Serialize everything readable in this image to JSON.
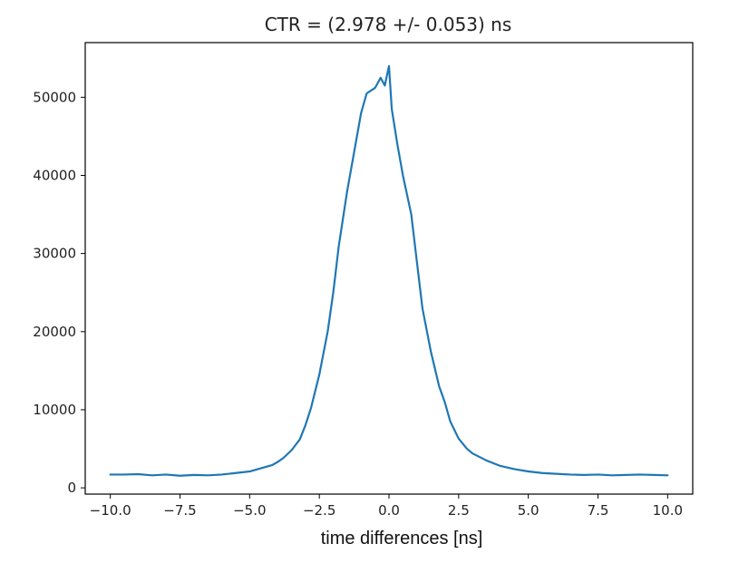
{
  "chart_data": {
    "type": "line",
    "title": "CTR = (2.978 +/- 0.053) ns",
    "xlabel": "time differences [ns]",
    "ylabel": "",
    "xlim": [
      -10.9,
      10.9
    ],
    "ylim": [
      -800,
      57000
    ],
    "grid": false,
    "line_color": "#1f77b4",
    "x_ticks": [
      -10.0,
      -7.5,
      -5.0,
      -2.5,
      0.0,
      2.5,
      5.0,
      7.5,
      10.0
    ],
    "x_tick_labels": [
      "−10.0",
      "−7.5",
      "−5.0",
      "−2.5",
      "0.0",
      "2.5",
      "5.0",
      "7.5",
      "10.0"
    ],
    "y_ticks": [
      0,
      10000,
      20000,
      30000,
      40000,
      50000
    ],
    "y_tick_labels": [
      "0",
      "10000",
      "20000",
      "30000",
      "40000",
      "50000"
    ],
    "series": [
      {
        "x": [
          -10.0,
          -9.5,
          -9.0,
          -8.5,
          -8.0,
          -7.5,
          -7.0,
          -6.5,
          -6.0,
          -5.5,
          -5.0,
          -4.5,
          -4.2,
          -4.0,
          -3.8,
          -3.5,
          -3.2,
          -3.0,
          -2.8,
          -2.5,
          -2.2,
          -2.0,
          -1.8,
          -1.5,
          -1.2,
          -1.0,
          -0.8,
          -0.5,
          -0.3,
          -0.15,
          0.0,
          0.1,
          0.3,
          0.5,
          0.8,
          1.0,
          1.2,
          1.5,
          1.8,
          2.0,
          2.2,
          2.5,
          2.8,
          3.0,
          3.5,
          4.0,
          4.5,
          5.0,
          5.5,
          6.0,
          6.5,
          7.0,
          7.5,
          8.0,
          8.5,
          9.0,
          9.5,
          10.0
        ],
        "y": [
          1700,
          1700,
          1750,
          1600,
          1700,
          1550,
          1650,
          1600,
          1700,
          1900,
          2100,
          2600,
          2900,
          3300,
          3800,
          4800,
          6200,
          8000,
          10200,
          14500,
          20000,
          25000,
          31000,
          38000,
          44000,
          48000,
          50500,
          51200,
          52500,
          51500,
          54000,
          48500,
          44000,
          40000,
          35000,
          29000,
          23000,
          17500,
          13000,
          11000,
          8500,
          6300,
          5000,
          4400,
          3500,
          2800,
          2400,
          2100,
          1900,
          1800,
          1700,
          1650,
          1700,
          1600,
          1650,
          1700,
          1650,
          1600
        ]
      }
    ]
  }
}
